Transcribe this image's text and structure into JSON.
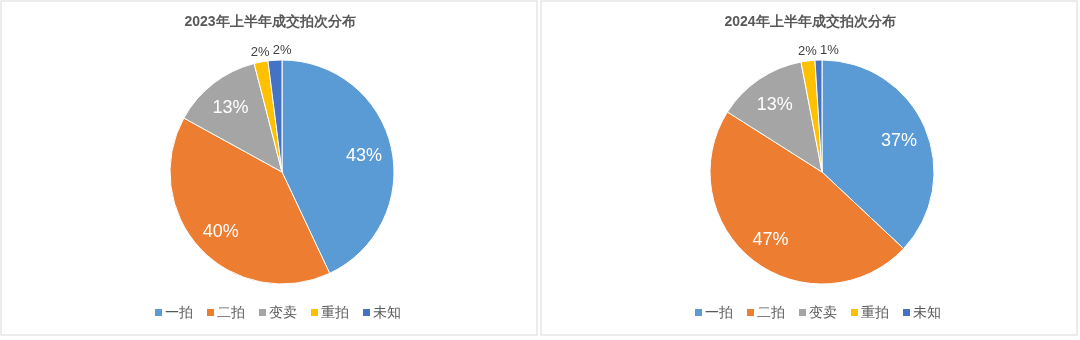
{
  "chart_data": [
    {
      "type": "pie",
      "title": "2023年上半年成交拍次分布",
      "categories": [
        "一拍",
        "二拍",
        "变卖",
        "重拍",
        "未知"
      ],
      "values": [
        43,
        40,
        13,
        2,
        2
      ],
      "value_labels": [
        "43%",
        "40%",
        "13%",
        "2%",
        "2%"
      ],
      "colors": [
        "#5b9bd5",
        "#ed7d31",
        "#a5a5a5",
        "#ffc000",
        "#4472c4"
      ],
      "legend": "bottom"
    },
    {
      "type": "pie",
      "title": "2024年上半年成交拍次分布",
      "categories": [
        "一拍",
        "二拍",
        "变卖",
        "重拍",
        "未知"
      ],
      "values": [
        37,
        47,
        13,
        2,
        1
      ],
      "value_labels": [
        "37%",
        "47%",
        "13%",
        "2%",
        "1%"
      ],
      "colors": [
        "#5b9bd5",
        "#ed7d31",
        "#a5a5a5",
        "#ffc000",
        "#4472c4"
      ],
      "legend": "bottom"
    }
  ]
}
